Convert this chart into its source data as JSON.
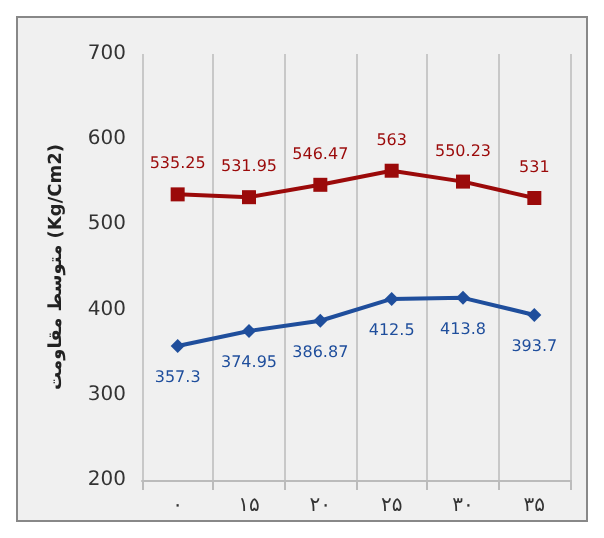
{
  "chart_data": {
    "type": "line",
    "ylabel": "متوسط مقاومت (Kg/Cm2)",
    "categories": [
      "۰",
      "۱۵",
      "۲۰",
      "۲۵",
      "۳۰",
      "۳۵"
    ],
    "series": [
      {
        "color": "#9b0a0a",
        "marker": "square",
        "values": [
          535.25,
          531.95,
          546.47,
          563,
          550.23,
          531
        ]
      },
      {
        "color": "#1f4e9c",
        "marker": "diamond",
        "values": [
          357.3,
          374.95,
          386.87,
          412.5,
          413.8,
          393.7
        ]
      }
    ],
    "ylim": [
      200,
      700
    ],
    "yticks": [
      200,
      300,
      400,
      500,
      600,
      700
    ],
    "grid": "x",
    "data_labels": true
  }
}
